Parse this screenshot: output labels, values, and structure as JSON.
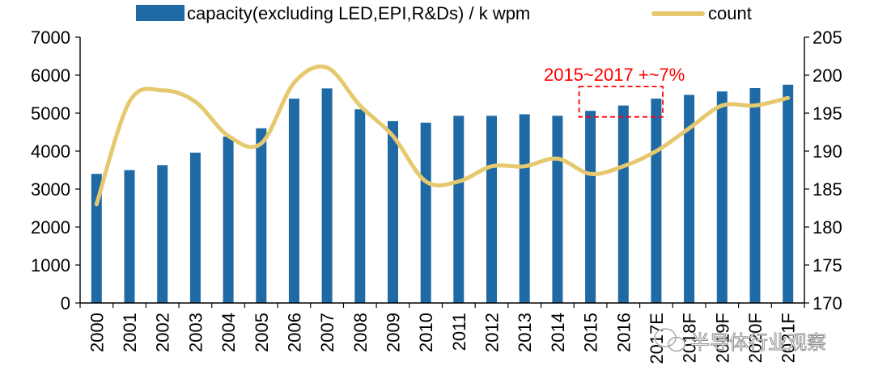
{
  "chart_data": {
    "type": "bar",
    "categories": [
      "2000",
      "2001",
      "2002",
      "2003",
      "2004",
      "2005",
      "2006",
      "2007",
      "2008",
      "2009",
      "2010",
      "2011",
      "2012",
      "2013",
      "2014",
      "2015",
      "2016",
      "2017E",
      "2018F",
      "2019F",
      "2020F",
      "2021F"
    ],
    "series": [
      {
        "name": "capacity(excluding LED,EPI,R&Ds) / k wpm",
        "type": "bar",
        "axis": "left",
        "color": "#1f6aa5",
        "values": [
          3400,
          3500,
          3630,
          3960,
          4380,
          4600,
          5380,
          5650,
          5100,
          4790,
          4750,
          4930,
          4930,
          4970,
          4930,
          5060,
          5200,
          5380,
          5480,
          5570,
          5660,
          5750
        ]
      },
      {
        "name": "count",
        "type": "line",
        "axis": "right",
        "color": "#e6c86e",
        "values": [
          183,
          196.5,
          198,
          196.5,
          192,
          191,
          199,
          201,
          196,
          192,
          186,
          186,
          188,
          188,
          189,
          187,
          188,
          190,
          193,
          196,
          196,
          197
        ]
      }
    ],
    "y_left": {
      "min": 0,
      "max": 7000,
      "ticks": [
        0,
        1000,
        2000,
        3000,
        4000,
        5000,
        6000,
        7000
      ]
    },
    "y_right": {
      "min": 170,
      "max": 205,
      "ticks": [
        170,
        175,
        180,
        185,
        190,
        195,
        200,
        205
      ]
    },
    "annotation": {
      "text": "2015~2017 +~7%",
      "color": "#ff0000",
      "from_category": "2015",
      "to_category": "2017E",
      "y_range": [
        4900,
        5700
      ]
    },
    "legend_position": "top",
    "watermark_text": "半导体行业观察"
  }
}
